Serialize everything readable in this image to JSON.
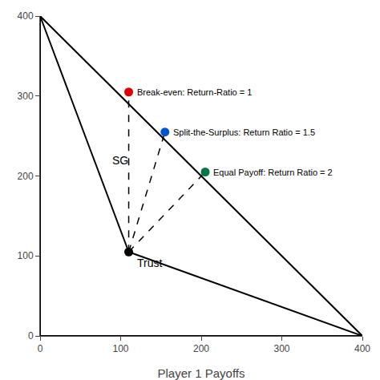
{
  "chart_data": {
    "type": "scatter",
    "xlabel": "Player 1 Payoffs",
    "xlim": [
      0,
      400
    ],
    "ylim": [
      0,
      400
    ],
    "xticks": [
      0,
      100,
      200,
      300,
      400
    ],
    "yticks": [
      0,
      100,
      200,
      300,
      400
    ],
    "grid": false,
    "series": [
      {
        "type": "polygon",
        "color": "#000000",
        "line_style": "solid",
        "x": [
          0,
          0,
          400
        ],
        "values": [
          400,
          0,
          0
        ]
      },
      {
        "type": "line",
        "color": "#000000",
        "line_style": "solid",
        "x": [
          0,
          110
        ],
        "values": [
          400,
          105
        ]
      },
      {
        "type": "line",
        "color": "#000000",
        "line_style": "solid",
        "x": [
          110,
          400
        ],
        "values": [
          105,
          0
        ]
      },
      {
        "type": "line",
        "color": "#000000",
        "line_style": "dashed",
        "x": [
          110,
          110
        ],
        "values": [
          105,
          305
        ]
      },
      {
        "type": "line",
        "color": "#000000",
        "line_style": "dashed",
        "x": [
          110,
          155
        ],
        "values": [
          105,
          255
        ]
      },
      {
        "type": "line",
        "color": "#000000",
        "line_style": "dashed",
        "x": [
          110,
          205
        ],
        "values": [
          105,
          205
        ]
      },
      {
        "type": "scatter",
        "color": "#e00000",
        "marker": "circle",
        "x": [
          110
        ],
        "values": [
          305
        ]
      },
      {
        "type": "scatter",
        "color": "#0055cc",
        "marker": "circle",
        "x": [
          155
        ],
        "values": [
          255
        ]
      },
      {
        "type": "scatter",
        "color": "#007744",
        "marker": "circle",
        "x": [
          205
        ],
        "values": [
          205
        ]
      },
      {
        "type": "scatter",
        "color": "#000000",
        "marker": "circle",
        "x": [
          110
        ],
        "values": [
          105
        ]
      }
    ],
    "annotations": [
      {
        "text": "Break-even: Return-Ratio = 1",
        "x": 110,
        "y": 305
      },
      {
        "text": "Split-the-Surplus: Return Ratio = 1.5",
        "x": 155,
        "y": 255
      },
      {
        "text": "Equal Payoff: Return Ratio = 2",
        "x": 205,
        "y": 205
      },
      {
        "text": "Trust",
        "x": 110,
        "y": 105
      },
      {
        "text": "SG",
        "x": 88,
        "y": 220
      }
    ]
  }
}
